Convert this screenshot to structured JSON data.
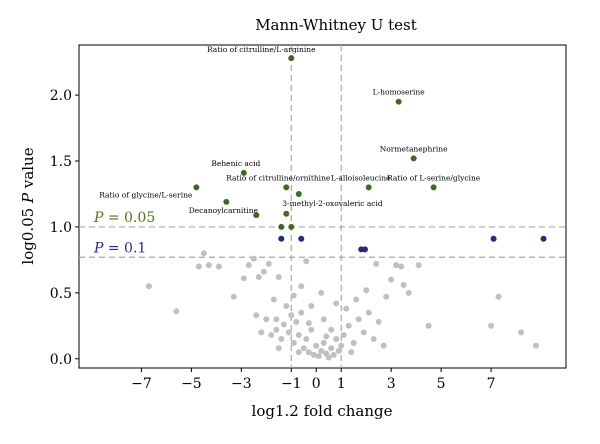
{
  "chart_data": {
    "type": "scatter",
    "title": "Mann-Whitney U test",
    "xlabel": "log1.2 fold change",
    "ylabel_prefix": "log0.05 ",
    "ylabel_italic": "P",
    "ylabel_suffix": " value",
    "xlim": [
      -9.5,
      10
    ],
    "ylim": [
      -0.07,
      2.38
    ],
    "xticks": [
      -7,
      -5,
      -3,
      -1,
      0,
      1,
      3,
      5,
      7
    ],
    "yticks": [
      0.0,
      0.5,
      1.0,
      1.5,
      2.0
    ],
    "ytick_labels": [
      "0.0",
      "0.5",
      "1.0",
      "1.5",
      "2.0"
    ],
    "vlines": [
      -1,
      1
    ],
    "thresholds": [
      {
        "y": 1.0,
        "label_italic": "P",
        "label_rest": " = 0.05",
        "color": "#4a7a1e"
      },
      {
        "y": 0.77,
        "label_italic": "P",
        "label_rest": " = 0.1",
        "color": "#2e2a8a"
      }
    ],
    "colors": {
      "significant": "#3d6b1f",
      "marginal": "#2a2780",
      "nonsignificant": "#c0c0c0",
      "threshold_line": "#a8a8a8"
    },
    "significant": [
      {
        "x": -1.0,
        "y": 2.28,
        "label": "Ratio of citrulline/L-arginine"
      },
      {
        "x": 3.3,
        "y": 1.95,
        "label": "L-homoserine"
      },
      {
        "x": 3.9,
        "y": 1.52,
        "label": "Normetanephrine"
      },
      {
        "x": -2.9,
        "y": 1.41,
        "label": "Behenic acid"
      },
      {
        "x": -1.2,
        "y": 1.3,
        "label": "Ratio of citrulline/ornithine"
      },
      {
        "x": -0.7,
        "y": 1.25,
        "label": ""
      },
      {
        "x": 2.1,
        "y": 1.3,
        "label": "L-alloisoleucine"
      },
      {
        "x": 4.7,
        "y": 1.3,
        "label": "Ratio of L-serine/glycine"
      },
      {
        "x": -4.8,
        "y": 1.3,
        "label": "Ratio of glycine/L-serine"
      },
      {
        "x": -3.6,
        "y": 1.19,
        "label": "Decanoylcarnitine"
      },
      {
        "x": -2.4,
        "y": 1.09,
        "label": ""
      },
      {
        "x": -1.2,
        "y": 1.1,
        "label": "3-methyl-2-oxovaleric acid"
      },
      {
        "x": -1.4,
        "y": 1.0,
        "label": ""
      },
      {
        "x": -1.0,
        "y": 1.0,
        "label": ""
      }
    ],
    "marginal": [
      {
        "x": -1.4,
        "y": 0.91
      },
      {
        "x": -0.6,
        "y": 0.91
      },
      {
        "x": 1.8,
        "y": 0.83
      },
      {
        "x": 1.95,
        "y": 0.83
      },
      {
        "x": 7.1,
        "y": 0.91
      },
      {
        "x": 9.1,
        "y": 0.91
      }
    ],
    "nonsignificant": [
      {
        "x": -6.7,
        "y": 0.55
      },
      {
        "x": -5.6,
        "y": 0.36
      },
      {
        "x": -4.7,
        "y": 0.7
      },
      {
        "x": -4.5,
        "y": 0.8
      },
      {
        "x": -4.3,
        "y": 0.71
      },
      {
        "x": -3.9,
        "y": 0.7
      },
      {
        "x": -3.3,
        "y": 0.47
      },
      {
        "x": -2.9,
        "y": 0.61
      },
      {
        "x": -2.7,
        "y": 0.71
      },
      {
        "x": -2.5,
        "y": 0.76
      },
      {
        "x": -2.4,
        "y": 0.33
      },
      {
        "x": -2.3,
        "y": 0.62
      },
      {
        "x": -2.1,
        "y": 0.66
      },
      {
        "x": -2.0,
        "y": 0.3
      },
      {
        "x": -1.9,
        "y": 0.72
      },
      {
        "x": -1.7,
        "y": 0.45
      },
      {
        "x": -1.6,
        "y": 0.3
      },
      {
        "x": -1.5,
        "y": 0.62
      },
      {
        "x": -1.2,
        "y": 0.4
      },
      {
        "x": -0.6,
        "y": 0.55
      },
      {
        "x": -0.4,
        "y": 0.74
      },
      {
        "x": 2.4,
        "y": 0.72
      },
      {
        "x": 2.8,
        "y": 0.47
      },
      {
        "x": 3.0,
        "y": 0.6
      },
      {
        "x": 3.2,
        "y": 0.71
      },
      {
        "x": 3.4,
        "y": 0.7
      },
      {
        "x": 3.5,
        "y": 0.56
      },
      {
        "x": 3.7,
        "y": 0.5
      },
      {
        "x": 4.1,
        "y": 0.71
      },
      {
        "x": 4.5,
        "y": 0.25
      },
      {
        "x": 7.0,
        "y": 0.25
      },
      {
        "x": 7.3,
        "y": 0.47
      },
      {
        "x": 8.2,
        "y": 0.2
      },
      {
        "x": 8.8,
        "y": 0.1
      },
      {
        "x": -1.8,
        "y": 0.18
      },
      {
        "x": -1.6,
        "y": 0.22
      },
      {
        "x": -1.4,
        "y": 0.15
      },
      {
        "x": -1.3,
        "y": 0.26
      },
      {
        "x": -1.1,
        "y": 0.2
      },
      {
        "x": -0.9,
        "y": 0.12
      },
      {
        "x": -0.8,
        "y": 0.28
      },
      {
        "x": -0.7,
        "y": 0.18
      },
      {
        "x": -0.5,
        "y": 0.08
      },
      {
        "x": -0.4,
        "y": 0.15
      },
      {
        "x": -0.3,
        "y": 0.05
      },
      {
        "x": -0.2,
        "y": 0.22
      },
      {
        "x": -0.1,
        "y": 0.03
      },
      {
        "x": 0.0,
        "y": 0.1
      },
      {
        "x": 0.1,
        "y": 0.02
      },
      {
        "x": 0.2,
        "y": 0.06
      },
      {
        "x": 0.3,
        "y": 0.12
      },
      {
        "x": 0.4,
        "y": 0.04
      },
      {
        "x": 0.5,
        "y": 0.01
      },
      {
        "x": 0.6,
        "y": 0.08
      },
      {
        "x": 0.7,
        "y": 0.03
      },
      {
        "x": 0.8,
        "y": 0.15
      },
      {
        "x": 0.9,
        "y": 0.06
      },
      {
        "x": 1.1,
        "y": 0.18
      },
      {
        "x": 1.3,
        "y": 0.25
      },
      {
        "x": 1.5,
        "y": 0.12
      },
      {
        "x": 1.7,
        "y": 0.3
      },
      {
        "x": 1.9,
        "y": 0.2
      },
      {
        "x": 2.1,
        "y": 0.35
      },
      {
        "x": 2.3,
        "y": 0.15
      },
      {
        "x": 2.5,
        "y": 0.28
      },
      {
        "x": -0.6,
        "y": 0.35
      },
      {
        "x": -0.2,
        "y": 0.4
      },
      {
        "x": 0.3,
        "y": 0.3
      },
      {
        "x": 0.8,
        "y": 0.42
      },
      {
        "x": 1.2,
        "y": 0.38
      },
      {
        "x": -1.0,
        "y": 0.33
      },
      {
        "x": -0.9,
        "y": 0.48
      },
      {
        "x": 1.6,
        "y": 0.45
      },
      {
        "x": 2.0,
        "y": 0.52
      },
      {
        "x": 0.2,
        "y": 0.5
      },
      {
        "x": -0.3,
        "y": 0.27
      },
      {
        "x": 0.6,
        "y": 0.22
      },
      {
        "x": 1.0,
        "y": 0.1
      },
      {
        "x": -1.5,
        "y": 0.08
      },
      {
        "x": -0.7,
        "y": 0.05
      },
      {
        "x": 0.4,
        "y": 0.17
      },
      {
        "x": 1.4,
        "y": 0.05
      },
      {
        "x": -2.2,
        "y": 0.2
      },
      {
        "x": 2.7,
        "y": 0.1
      }
    ]
  }
}
